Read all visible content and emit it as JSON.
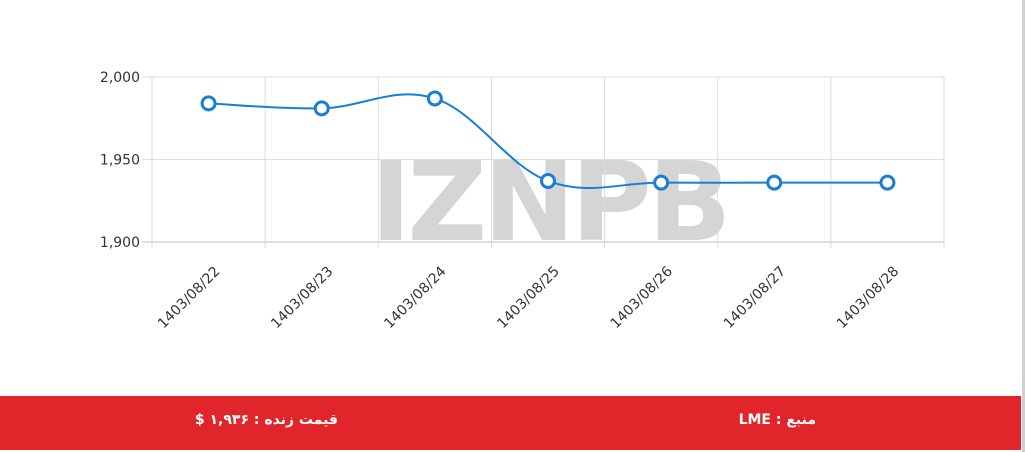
{
  "chart_data": {
    "type": "line",
    "categories": [
      "1403/08/22",
      "1403/08/23",
      "1403/08/24",
      "1403/08/25",
      "1403/08/26",
      "1403/08/27",
      "1403/08/28"
    ],
    "series": [
      {
        "values": [
          1984,
          1981,
          1987,
          1937,
          1936,
          1936,
          1936
        ]
      }
    ],
    "y_ticks": [
      "1,900",
      "1,950",
      "2,000"
    ],
    "ylim": [
      1900,
      2000
    ],
    "grid": true,
    "line_color": "#1a7fd4",
    "watermark": "IZNPB"
  },
  "footer": {
    "source_label": "منبع : LME",
    "price_label": "قیمت زنده : ۱,۹۳۶ $",
    "background_color": "#e0262b"
  }
}
